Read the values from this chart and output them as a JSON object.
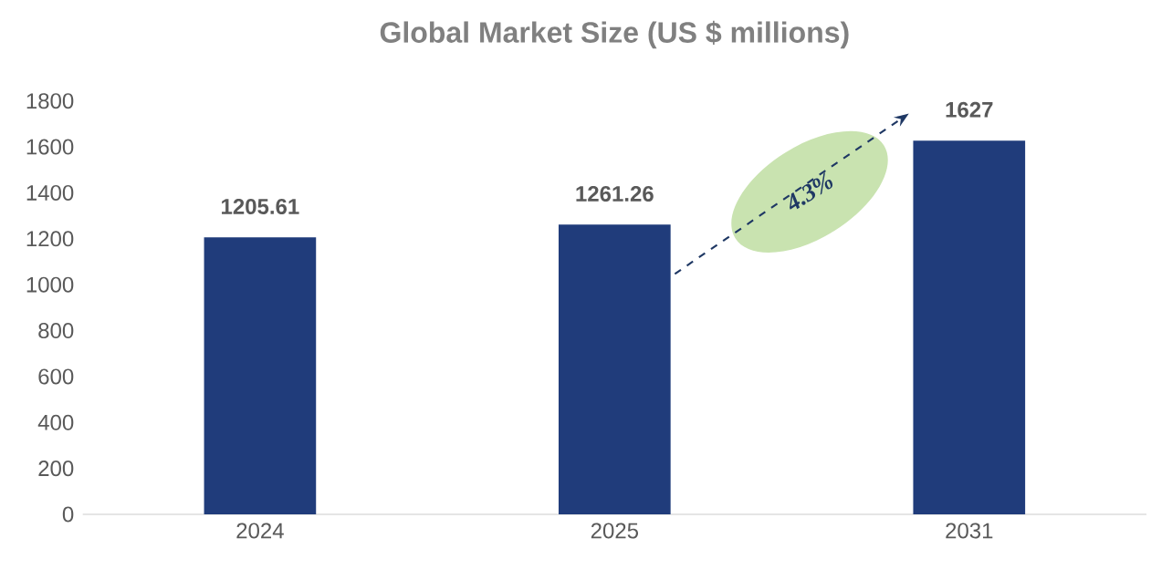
{
  "chart_data": {
    "type": "bar",
    "title": "Global Market Size (US $ millions)",
    "categories": [
      "2024",
      "2025",
      "2031"
    ],
    "values": [
      1205.61,
      1261.26,
      1627
    ],
    "color": "#203c7b",
    "data_labels": true,
    "ylim": [
      0,
      1800
    ],
    "yticks": [
      0,
      200,
      400,
      600,
      800,
      1000,
      1200,
      1400,
      1600,
      1800
    ],
    "annotations": [
      "4.3%"
    ]
  }
}
